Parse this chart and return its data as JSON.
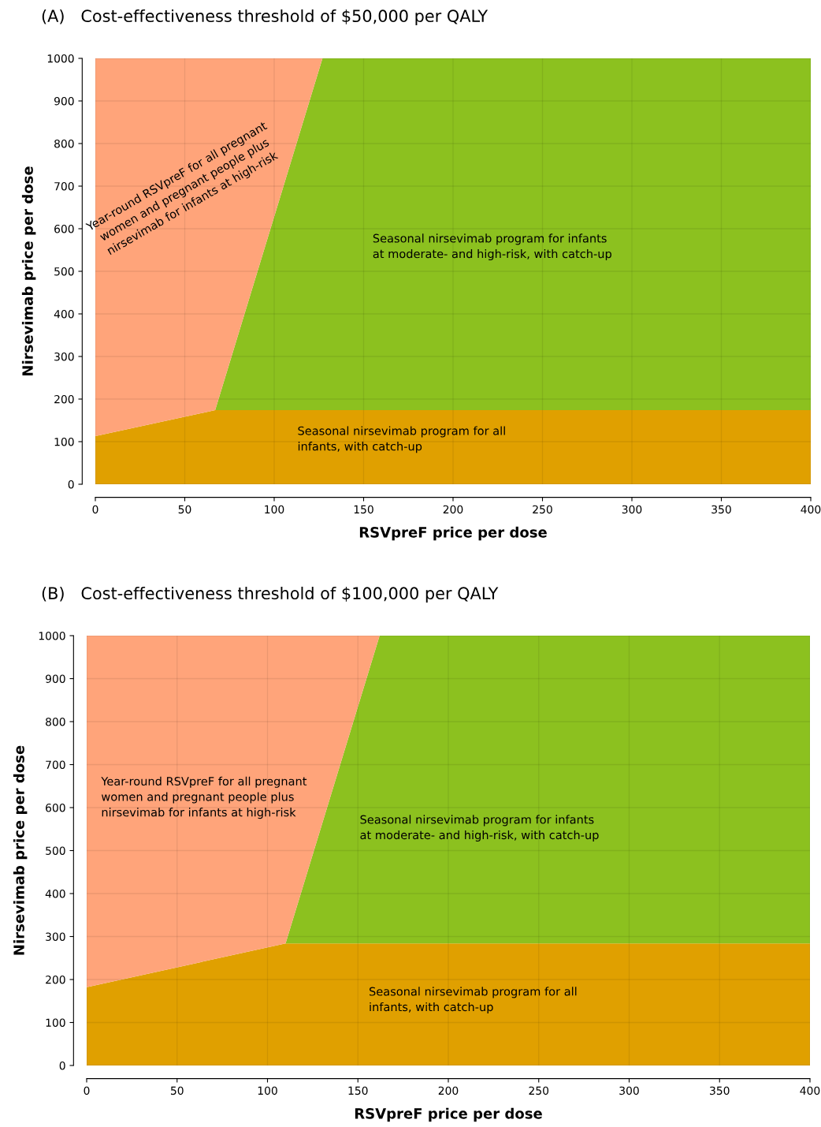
{
  "chart_data": [
    {
      "type": "area",
      "stacked": true,
      "title": "(A)   Cost-effectiveness threshold of $50,000 per QALY",
      "xlabel": "RSVpreF price per dose",
      "ylabel": "Nirsevimab price per dose",
      "x": [
        0,
        67,
        127,
        400
      ],
      "xlim": [
        0,
        400
      ],
      "ylim": [
        0,
        1000
      ],
      "xticks": [
        0,
        50,
        100,
        150,
        200,
        250,
        300,
        350,
        400
      ],
      "yticks": [
        0,
        100,
        200,
        300,
        400,
        500,
        600,
        700,
        800,
        900,
        1000
      ],
      "grid": true,
      "series": [
        {
          "color": "#e0a000",
          "values": [
            113,
            174,
            174,
            174
          ]
        },
        {
          "color": "#8cc11f",
          "values": [
            0,
            0,
            826,
            826
          ]
        },
        {
          "color": "#ffa47a",
          "values": [
            887,
            826,
            0,
            null
          ]
        }
      ],
      "annotations": [
        "Year-round RSVpreF for all pregnant\nwomen and pregnant people plus\nnirsevimab for infants at high-risk",
        "Seasonal nirsevimab program for infants\nat moderate- and high-risk, with catch-up",
        "Seasonal nirsevimab program for all\ninfants, with catch-up"
      ]
    },
    {
      "type": "area",
      "stacked": true,
      "title": "(B)   Cost-effectiveness threshold of $100,000 per QALY",
      "xlabel": "RSVpreF price per dose",
      "ylabel": "Nirsevimab price per dose",
      "x": [
        0,
        110,
        162,
        400
      ],
      "xlim": [
        0,
        400
      ],
      "ylim": [
        0,
        1000
      ],
      "xticks": [
        0,
        50,
        100,
        150,
        200,
        250,
        300,
        350,
        400
      ],
      "yticks": [
        0,
        100,
        200,
        300,
        400,
        500,
        600,
        700,
        800,
        900,
        1000
      ],
      "grid": true,
      "series": [
        {
          "color": "#e0a000",
          "values": [
            182,
            284,
            284,
            284
          ]
        },
        {
          "color": "#8cc11f",
          "values": [
            0,
            0,
            716,
            716
          ]
        },
        {
          "color": "#ffa47a",
          "values": [
            818,
            716,
            0,
            null
          ]
        }
      ],
      "annotations": [
        "Year-round RSVpreF for all pregnant\nwomen and pregnant people plus\nnirsevimab for infants at high-risk",
        "Seasonal nirsevimab program for infants\nat moderate- and high-risk, with catch-up",
        "Seasonal nirsevimab program for all\ninfants, with catch-up"
      ]
    }
  ]
}
